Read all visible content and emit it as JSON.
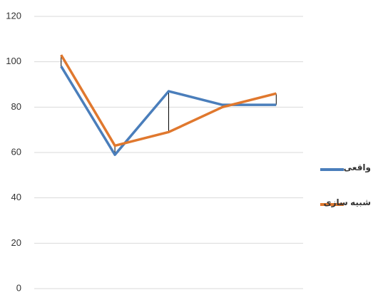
{
  "chart_data": {
    "type": "line",
    "categories": [
      null,
      null,
      null,
      null,
      null
    ],
    "series": [
      {
        "name": "واقعی",
        "color": "#4a7ebb",
        "values": [
          98,
          59,
          87,
          81,
          81
        ]
      },
      {
        "name": "شبیه سازی",
        "color": "#e0782e",
        "values": [
          103,
          63,
          69,
          80,
          86
        ]
      }
    ],
    "ylim": [
      0,
      120
    ],
    "yticks": [
      0,
      20,
      40,
      60,
      80,
      100,
      120
    ],
    "grid": true,
    "high_low_lines": true,
    "legend": "right"
  }
}
